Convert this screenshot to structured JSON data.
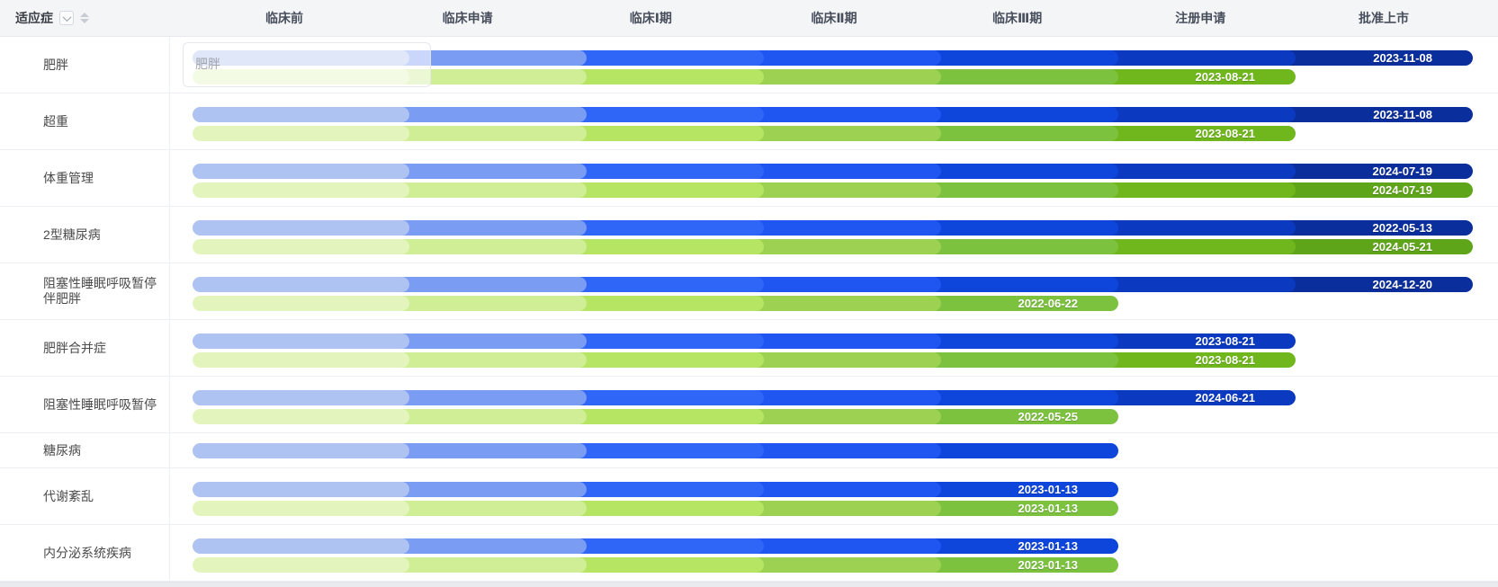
{
  "header": {
    "first_column_label": "适应症",
    "stages": [
      "临床前",
      "临床申请",
      "临床Ⅰ期",
      "临床Ⅱ期",
      "临床Ⅲ期",
      "注册申请",
      "批准上市"
    ]
  },
  "palette": {
    "blue_stages": [
      "#aec3f1",
      "#7b9cf3",
      "#2f66f7",
      "#1f55f1",
      "#0e45da",
      "#0b3ac0",
      "#0a2e9c"
    ],
    "green_stages": [
      "#e3f5bd",
      "#cfee96",
      "#b5e562",
      "#9cd152",
      "#7cc23f",
      "#70b71d",
      "#5fa51a"
    ]
  },
  "ghost_overlay": {
    "visible": true,
    "label": "肥胖",
    "row_index": 0
  },
  "chart_data": {
    "type": "gantt",
    "title": "",
    "stages": [
      "临床前",
      "临床申请",
      "临床Ⅰ期",
      "临床Ⅱ期",
      "临床Ⅲ期",
      "注册申请",
      "批准上市"
    ],
    "grid": false,
    "legend_position": "none",
    "rows": [
      {
        "indication": "肥胖",
        "series": [
          {
            "name": "blue",
            "reached_stage": "批准上市",
            "stage_index": 7,
            "date": "2023-11-08"
          },
          {
            "name": "green",
            "reached_stage": "注册申请",
            "stage_index": 6,
            "date": "2023-08-21"
          }
        ]
      },
      {
        "indication": "超重",
        "series": [
          {
            "name": "blue",
            "reached_stage": "批准上市",
            "stage_index": 7,
            "date": "2023-11-08"
          },
          {
            "name": "green",
            "reached_stage": "注册申请",
            "stage_index": 6,
            "date": "2023-08-21"
          }
        ]
      },
      {
        "indication": "体重管理",
        "series": [
          {
            "name": "blue",
            "reached_stage": "批准上市",
            "stage_index": 7,
            "date": "2024-07-19"
          },
          {
            "name": "green",
            "reached_stage": "批准上市",
            "stage_index": 7,
            "date": "2024-07-19"
          }
        ]
      },
      {
        "indication": "2型糖尿病",
        "series": [
          {
            "name": "blue",
            "reached_stage": "批准上市",
            "stage_index": 7,
            "date": "2022-05-13"
          },
          {
            "name": "green",
            "reached_stage": "批准上市",
            "stage_index": 7,
            "date": "2024-05-21"
          }
        ]
      },
      {
        "indication": "阻塞性睡眠呼吸暂停伴肥胖",
        "series": [
          {
            "name": "blue",
            "reached_stage": "批准上市",
            "stage_index": 7,
            "date": "2024-12-20"
          },
          {
            "name": "green",
            "reached_stage": "临床Ⅲ期",
            "stage_index": 5,
            "date": "2022-06-22"
          }
        ]
      },
      {
        "indication": "肥胖合并症",
        "series": [
          {
            "name": "blue",
            "reached_stage": "注册申请",
            "stage_index": 6,
            "date": "2023-08-21"
          },
          {
            "name": "green",
            "reached_stage": "注册申请",
            "stage_index": 6,
            "date": "2023-08-21"
          }
        ]
      },
      {
        "indication": "阻塞性睡眠呼吸暂停",
        "series": [
          {
            "name": "blue",
            "reached_stage": "注册申请",
            "stage_index": 6,
            "date": "2024-06-21"
          },
          {
            "name": "green",
            "reached_stage": "临床Ⅲ期",
            "stage_index": 5,
            "date": "2022-05-25"
          }
        ]
      },
      {
        "indication": "糖尿病",
        "series": [
          {
            "name": "blue",
            "reached_stage": "临床Ⅲ期",
            "stage_index": 5,
            "date": ""
          }
        ]
      },
      {
        "indication": "代谢紊乱",
        "series": [
          {
            "name": "blue",
            "reached_stage": "临床Ⅲ期",
            "stage_index": 5,
            "date": "2023-01-13"
          },
          {
            "name": "green",
            "reached_stage": "临床Ⅲ期",
            "stage_index": 5,
            "date": "2023-01-13"
          }
        ]
      },
      {
        "indication": "内分泌系统疾病",
        "series": [
          {
            "name": "blue",
            "reached_stage": "临床Ⅲ期",
            "stage_index": 5,
            "date": "2023-01-13"
          },
          {
            "name": "green",
            "reached_stage": "临床Ⅲ期",
            "stage_index": 5,
            "date": "2023-01-13"
          }
        ]
      }
    ]
  }
}
